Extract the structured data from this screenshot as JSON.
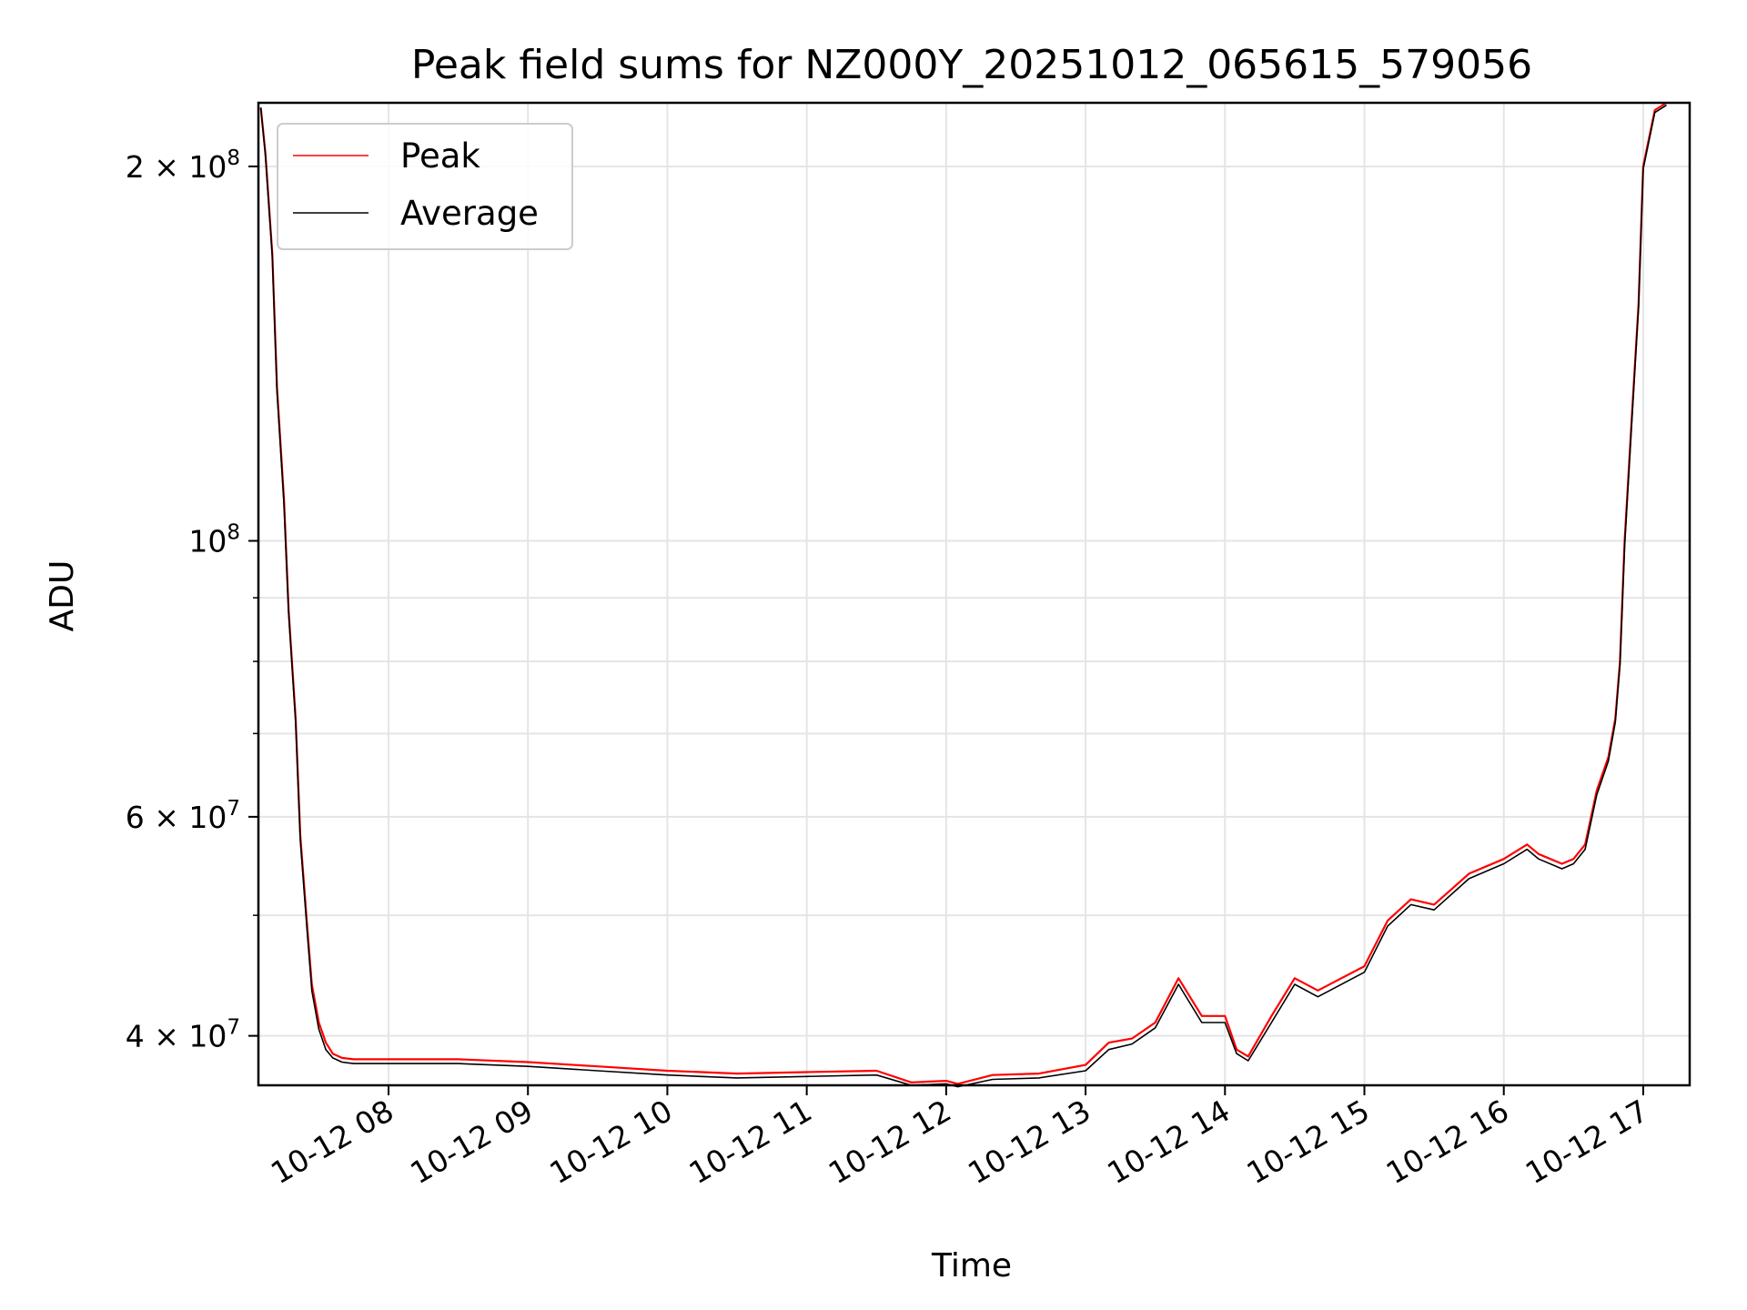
{
  "chart_data": {
    "type": "line",
    "title": "Peak field sums for NZ000Y_20251012_065615_579056",
    "xlabel": "Time",
    "ylabel": "ADU",
    "yscale": "log",
    "grid": true,
    "legend_position": "upper-left",
    "xlim": [
      "2025-10-12 07:04",
      "2025-10-12 17:20"
    ],
    "ylim": [
      36500000,
      225000000
    ],
    "x_ticks": [
      "10-12 08",
      "10-12 09",
      "10-12 10",
      "10-12 11",
      "10-12 12",
      "10-12 13",
      "10-12 14",
      "10-12 15",
      "10-12 16",
      "10-12 17"
    ],
    "y_ticks": [
      {
        "value": 40000000,
        "mantissa": "4",
        "exponent": "7"
      },
      {
        "value": 60000000,
        "mantissa": "6",
        "exponent": "7"
      },
      {
        "value": 100000000,
        "mantissa": "",
        "exponent": "8"
      },
      {
        "value": 200000000,
        "mantissa": "2",
        "exponent": "8"
      }
    ],
    "x": [
      "2025-10-12 07:05",
      "2025-10-12 07:07",
      "2025-10-12 07:10",
      "2025-10-12 07:12",
      "2025-10-12 07:15",
      "2025-10-12 07:17",
      "2025-10-12 07:20",
      "2025-10-12 07:22",
      "2025-10-12 07:25",
      "2025-10-12 07:27",
      "2025-10-12 07:30",
      "2025-10-12 07:33",
      "2025-10-12 07:36",
      "2025-10-12 07:40",
      "2025-10-12 07:45",
      "2025-10-12 07:50",
      "2025-10-12 07:55",
      "2025-10-12 08:00",
      "2025-10-12 08:30",
      "2025-10-12 09:00",
      "2025-10-12 09:30",
      "2025-10-12 10:00",
      "2025-10-12 10:30",
      "2025-10-12 11:00",
      "2025-10-12 11:30",
      "2025-10-12 11:45",
      "2025-10-12 12:00",
      "2025-10-12 12:05",
      "2025-10-12 12:20",
      "2025-10-12 12:40",
      "2025-10-12 13:00",
      "2025-10-12 13:10",
      "2025-10-12 13:20",
      "2025-10-12 13:30",
      "2025-10-12 13:40",
      "2025-10-12 13:50",
      "2025-10-12 14:00",
      "2025-10-12 14:05",
      "2025-10-12 14:10",
      "2025-10-12 14:20",
      "2025-10-12 14:30",
      "2025-10-12 14:40",
      "2025-10-12 15:00",
      "2025-10-12 15:10",
      "2025-10-12 15:20",
      "2025-10-12 15:30",
      "2025-10-12 15:45",
      "2025-10-12 16:00",
      "2025-10-12 16:10",
      "2025-10-12 16:15",
      "2025-10-12 16:25",
      "2025-10-12 16:30",
      "2025-10-12 16:35",
      "2025-10-12 16:40",
      "2025-10-12 16:45",
      "2025-10-12 16:48",
      "2025-10-12 16:50",
      "2025-10-12 16:52",
      "2025-10-12 16:55",
      "2025-10-12 16:58",
      "2025-10-12 17:00",
      "2025-10-12 17:05",
      "2025-10-12 17:10"
    ],
    "series": [
      {
        "name": "Peak",
        "color": "#ff0000",
        "values": [
          223000000,
          205000000,
          170000000,
          133000000,
          108000000,
          88000000,
          72000000,
          58000000,
          49000000,
          44000000,
          41000000,
          39500000,
          38700000,
          38400000,
          38300000,
          38300000,
          38300000,
          38300000,
          38300000,
          38100000,
          37800000,
          37500000,
          37300000,
          37400000,
          37500000,
          36700000,
          36800000,
          36600000,
          37200000,
          37300000,
          37900000,
          39500000,
          39800000,
          41000000,
          44500000,
          41500000,
          41500000,
          39000000,
          38500000,
          41500000,
          44500000,
          43500000,
          45500000,
          49500000,
          51500000,
          51000000,
          54000000,
          55500000,
          57000000,
          56000000,
          55000000,
          55500000,
          57000000,
          63000000,
          67000000,
          72000000,
          80000000,
          100000000,
          125000000,
          155000000,
          200000000,
          222000000,
          225000000
        ]
      },
      {
        "name": "Average",
        "color": "#000000",
        "values": [
          223000000,
          204000000,
          169000000,
          132000000,
          107000000,
          87500000,
          71500000,
          57500000,
          48500000,
          43500000,
          40500000,
          39000000,
          38400000,
          38100000,
          38000000,
          38000000,
          38000000,
          38000000,
          38000000,
          37800000,
          37500000,
          37200000,
          37000000,
          37100000,
          37200000,
          36500000,
          36600000,
          36400000,
          36900000,
          37000000,
          37500000,
          39000000,
          39400000,
          40600000,
          44000000,
          41000000,
          41000000,
          38700000,
          38200000,
          41000000,
          44000000,
          43000000,
          45000000,
          49000000,
          51000000,
          50500000,
          53500000,
          55000000,
          56500000,
          55500000,
          54500000,
          55000000,
          56500000,
          62500000,
          66500000,
          71500000,
          79500000,
          99000000,
          124000000,
          154000000,
          199000000,
          221000000,
          224000000
        ]
      }
    ]
  }
}
